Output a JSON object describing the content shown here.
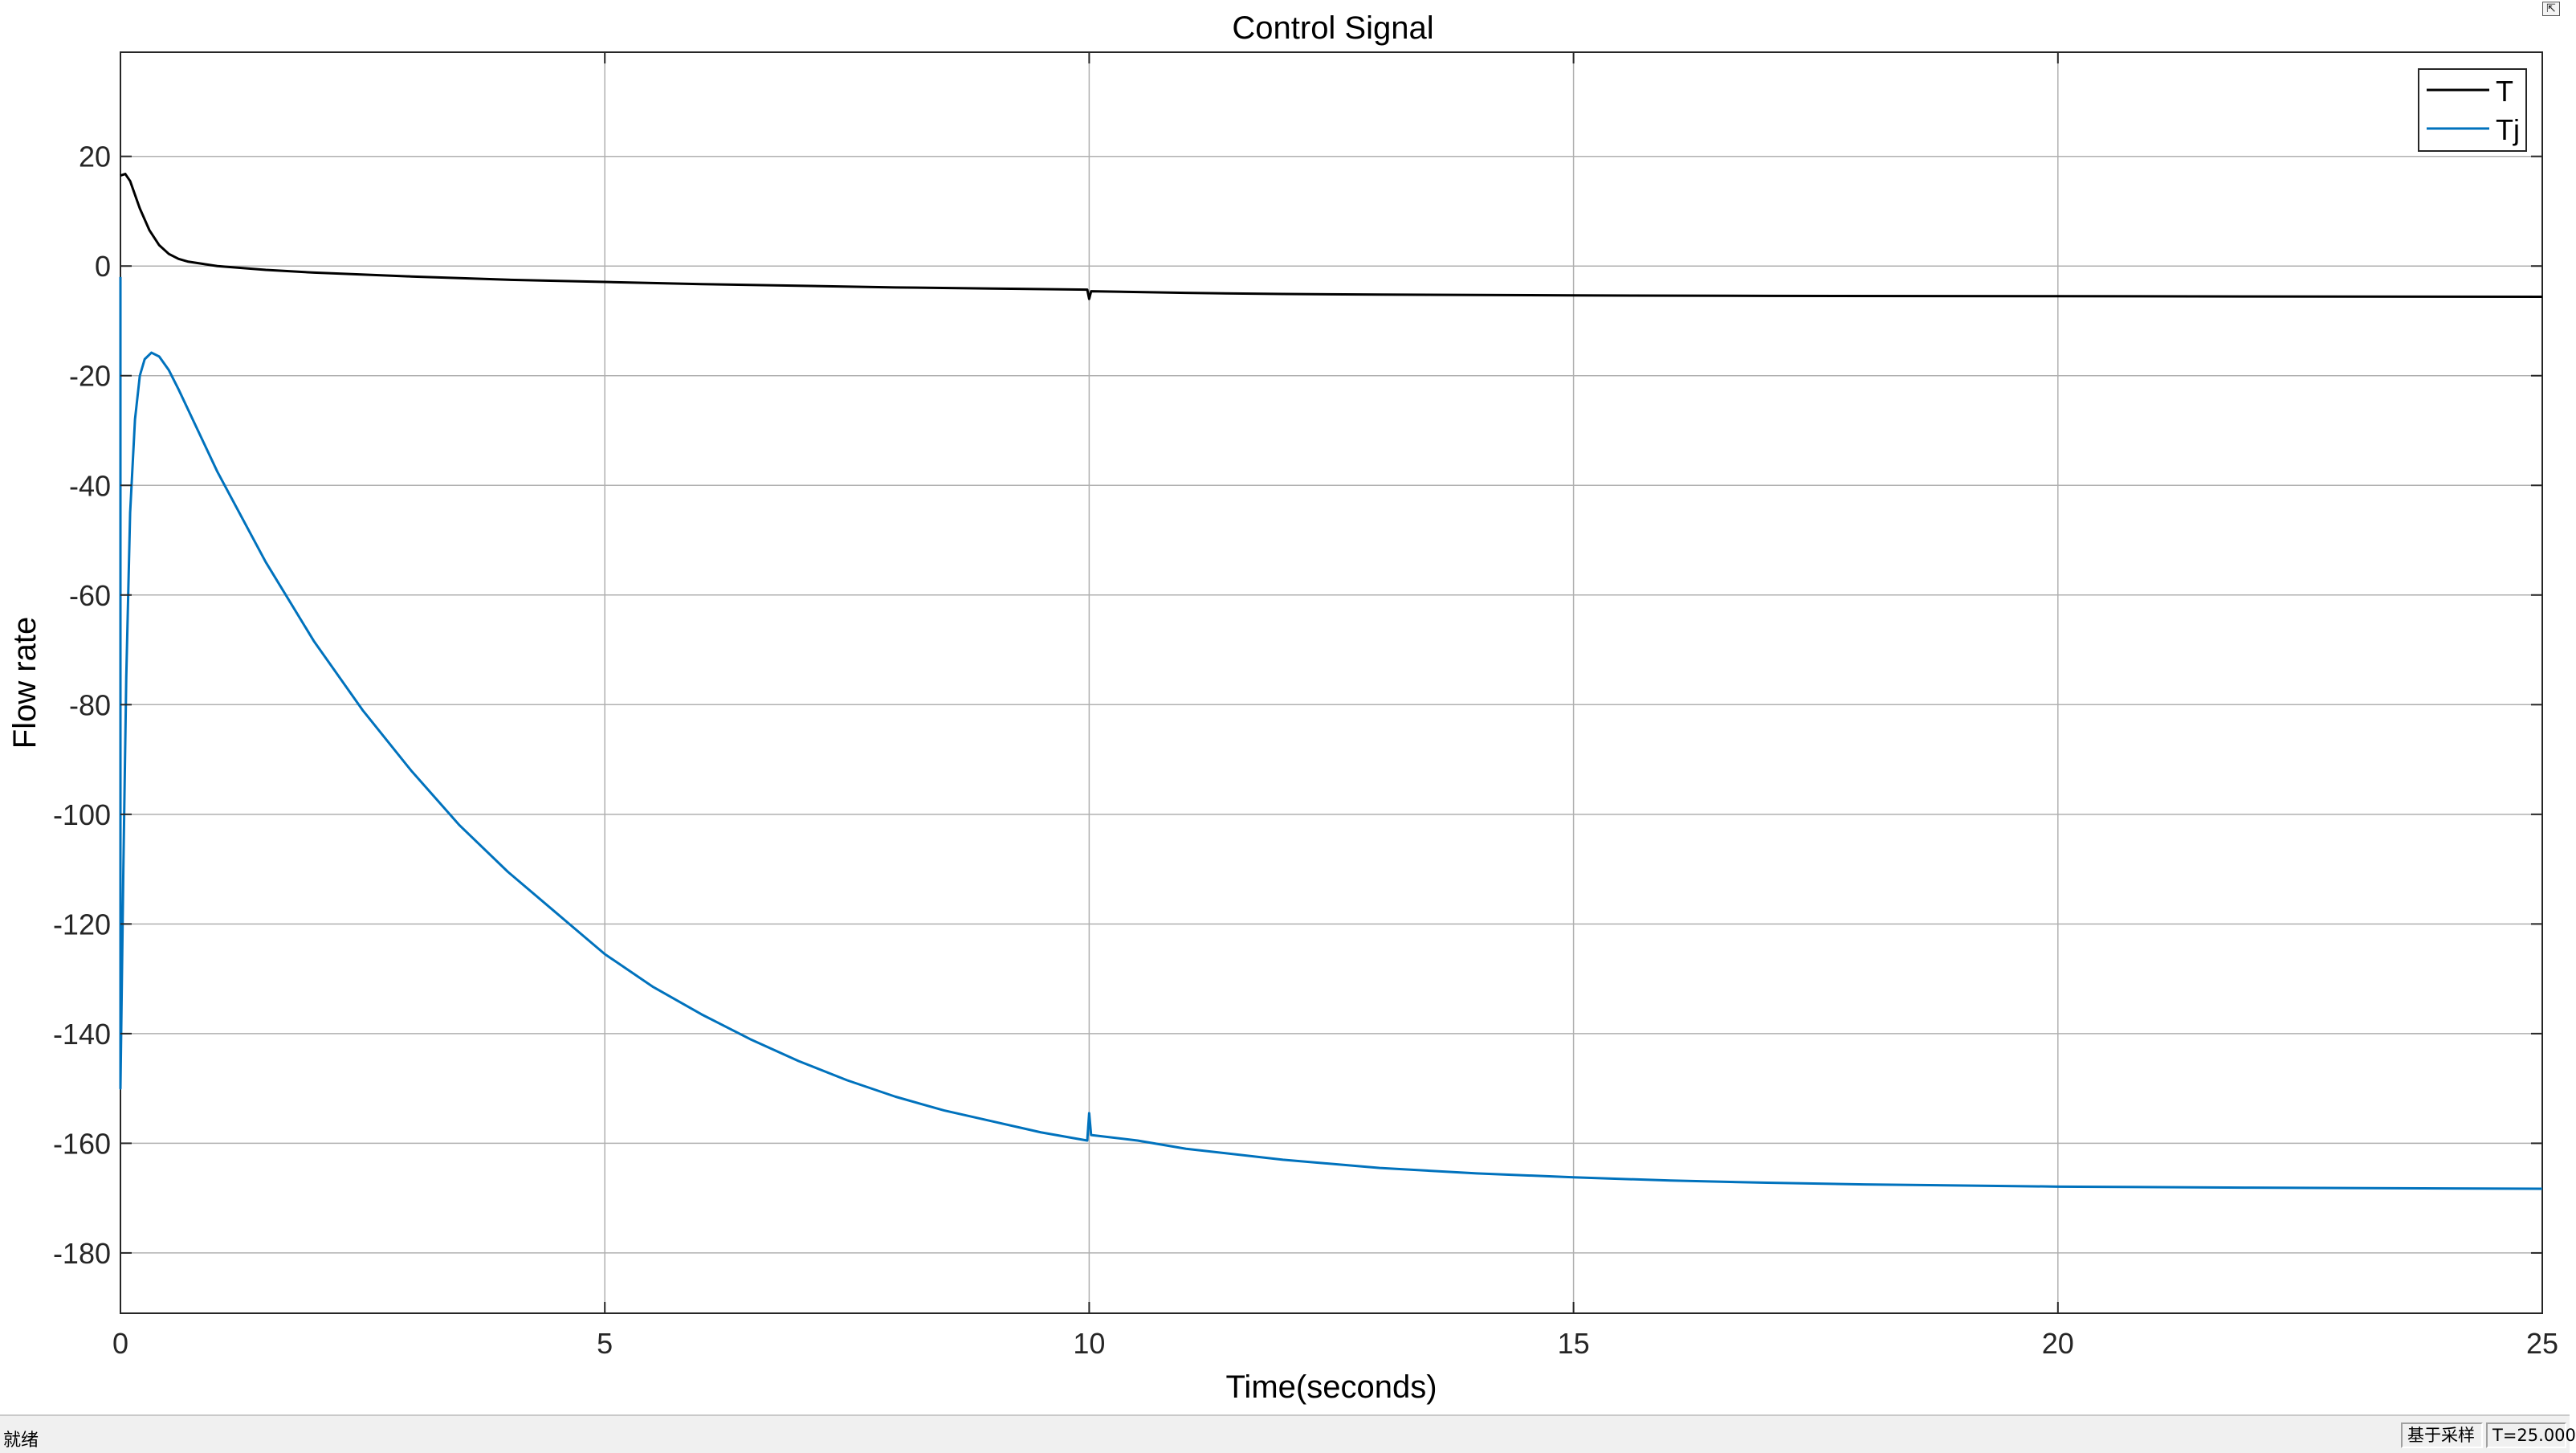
{
  "window": {
    "undock_icon": "undock-arrow-icon",
    "status": {
      "ready_text": "就绪",
      "sample_mode": "基于采样",
      "time_readout": "T=25.000"
    }
  },
  "chart_data": {
    "type": "line",
    "title": "Control Signal",
    "xlabel": "Time(seconds)",
    "ylabel": "Flow rate",
    "xlim": [
      0,
      25
    ],
    "ylim": [
      -191,
      39
    ],
    "xticks": [
      0,
      5,
      10,
      15,
      20,
      25
    ],
    "yticks": [
      20,
      0,
      -20,
      -40,
      -60,
      -80,
      -100,
      -120,
      -140,
      -160,
      -180
    ],
    "grid": true,
    "legend_position": "top-right",
    "series": [
      {
        "name": "T",
        "color": "#000000",
        "points": [
          [
            0,
            16.5
          ],
          [
            0.05,
            16.8
          ],
          [
            0.1,
            15.5
          ],
          [
            0.15,
            13.0
          ],
          [
            0.2,
            10.5
          ],
          [
            0.3,
            6.5
          ],
          [
            0.4,
            3.8
          ],
          [
            0.5,
            2.2
          ],
          [
            0.6,
            1.3
          ],
          [
            0.7,
            0.8
          ],
          [
            0.85,
            0.4
          ],
          [
            1,
            0.0
          ],
          [
            1.5,
            -0.7
          ],
          [
            2,
            -1.2
          ],
          [
            3,
            -1.9
          ],
          [
            4,
            -2.5
          ],
          [
            5,
            -2.9
          ],
          [
            6,
            -3.3
          ],
          [
            7,
            -3.6
          ],
          [
            8,
            -3.9
          ],
          [
            9,
            -4.1
          ],
          [
            9.98,
            -4.3
          ],
          [
            10.0,
            -6.0
          ],
          [
            10.02,
            -4.6
          ],
          [
            11,
            -4.9
          ],
          [
            12,
            -5.1
          ],
          [
            13,
            -5.2
          ],
          [
            15,
            -5.35
          ],
          [
            17,
            -5.45
          ],
          [
            20,
            -5.5
          ],
          [
            22,
            -5.55
          ],
          [
            25,
            -5.6
          ]
        ]
      },
      {
        "name": "Tj",
        "color": "#0072BD",
        "points": [
          [
            0,
            -2
          ],
          [
            0.0,
            -150
          ],
          [
            0.03,
            -110
          ],
          [
            0.06,
            -75
          ],
          [
            0.1,
            -45
          ],
          [
            0.15,
            -28
          ],
          [
            0.2,
            -20
          ],
          [
            0.25,
            -17
          ],
          [
            0.32,
            -15.8
          ],
          [
            0.4,
            -16.5
          ],
          [
            0.5,
            -19
          ],
          [
            0.6,
            -22.5
          ],
          [
            0.8,
            -30
          ],
          [
            1,
            -37.5
          ],
          [
            1.5,
            -54
          ],
          [
            2,
            -68.5
          ],
          [
            2.5,
            -81
          ],
          [
            3,
            -92
          ],
          [
            3.5,
            -102
          ],
          [
            4,
            -110.5
          ],
          [
            4.5,
            -118
          ],
          [
            5,
            -125.5
          ],
          [
            5.5,
            -131.5
          ],
          [
            6,
            -136.5
          ],
          [
            6.5,
            -141
          ],
          [
            7,
            -145
          ],
          [
            7.5,
            -148.5
          ],
          [
            8,
            -151.5
          ],
          [
            8.5,
            -154
          ],
          [
            9,
            -156
          ],
          [
            9.5,
            -158
          ],
          [
            9.98,
            -159.5
          ],
          [
            10.0,
            -154.5
          ],
          [
            10.02,
            -158.5
          ],
          [
            10.5,
            -159.5
          ],
          [
            11,
            -161
          ],
          [
            12,
            -163
          ],
          [
            13,
            -164.5
          ],
          [
            14,
            -165.5
          ],
          [
            15,
            -166.2
          ],
          [
            16,
            -166.8
          ],
          [
            17,
            -167.2
          ],
          [
            18,
            -167.5
          ],
          [
            20,
            -167.9
          ],
          [
            22,
            -168.1
          ],
          [
            25,
            -168.3
          ]
        ]
      }
    ]
  }
}
